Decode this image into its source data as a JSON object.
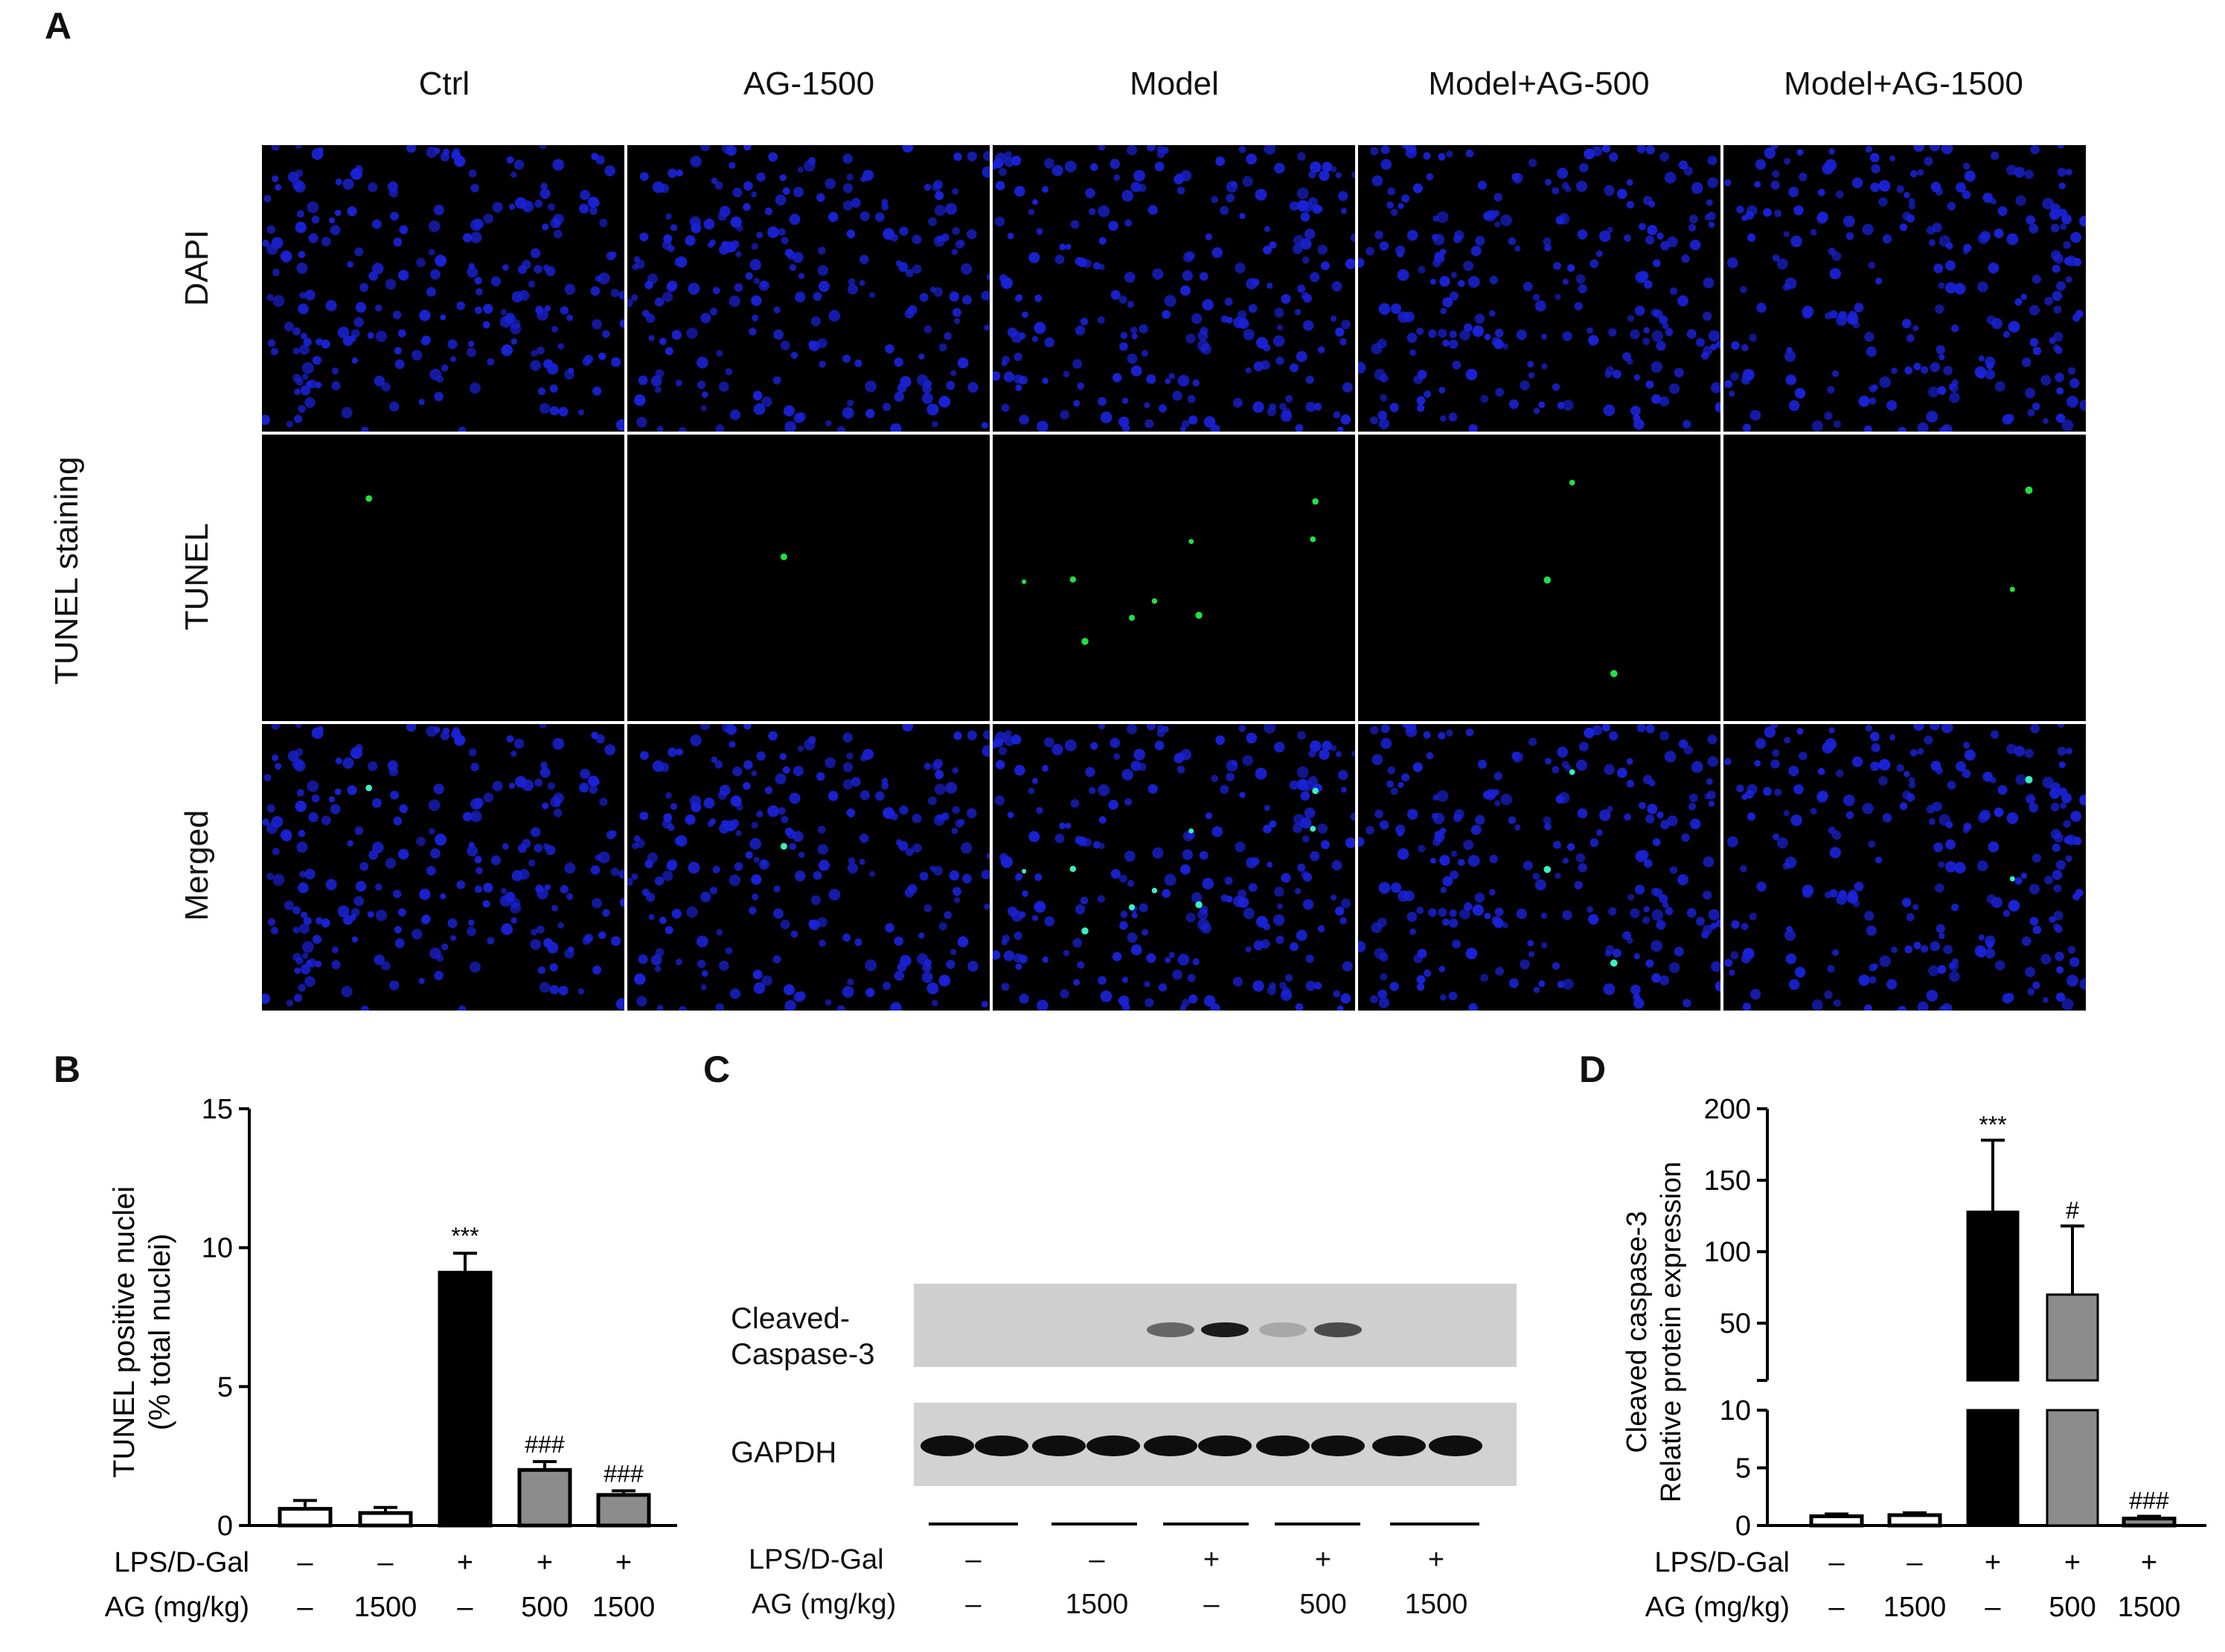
{
  "panels": {
    "a": "A",
    "b": "B",
    "c": "C",
    "d": "D"
  },
  "panel_a": {
    "side_title": "TUNEL staining",
    "columns": [
      "Ctrl",
      "AG-1500",
      "Model",
      "Model+AG-500",
      "Model+AG-1500"
    ],
    "rows": [
      "DAPI",
      "TUNEL",
      "Merged"
    ],
    "colors": {
      "nuclei": "#1a22d8",
      "tunel": "#22e044",
      "merged_tunel": "#3af0c0",
      "background": "#000000"
    },
    "tunel_positive_counts": [
      1,
      1,
      9,
      3,
      2
    ]
  },
  "panel_c": {
    "bands": [
      "Cleaved-\nCaspase-3",
      "GAPDH"
    ],
    "band_label_1": "Cleaved-",
    "band_label_2": "Caspase-3",
    "band_label_3": "GAPDH",
    "condition_rows": [
      "LPS/D-Gal",
      "AG (mg/kg)"
    ],
    "lps": [
      "–",
      "–",
      "+",
      "+",
      "+"
    ],
    "ag": [
      "–",
      "1500",
      "–",
      "500",
      "1500"
    ]
  },
  "chart_data": [
    {
      "type": "bar",
      "panel": "B",
      "ylabel_line1": "TUNEL positive nuclei",
      "ylabel_line2": "(% total nuclei)",
      "categories": [
        "Ctrl",
        "AG-1500",
        "Model",
        "Model+AG-500",
        "Model+AG-1500"
      ],
      "values": [
        0.6,
        0.45,
        9.1,
        2.0,
        1.1
      ],
      "errors": [
        0.3,
        0.2,
        0.7,
        0.3,
        0.15
      ],
      "colors": [
        "#ffffff",
        "#ffffff",
        "#000000",
        "#8c8c8c",
        "#8c8c8c"
      ],
      "annotations": [
        "",
        "",
        "***",
        "###",
        "###"
      ],
      "ylim": [
        0,
        15
      ],
      "yticks": [
        0,
        5,
        10,
        15
      ],
      "condition_rows": [
        "LPS/D-Gal",
        "AG (mg/kg)"
      ],
      "lps": [
        "–",
        "–",
        "+",
        "+",
        "+"
      ],
      "ag": [
        "–",
        "1500",
        "–",
        "500",
        "1500"
      ]
    },
    {
      "type": "bar",
      "panel": "D",
      "ylabel_line1": "Cleaved caspase-3",
      "ylabel_line2": "Relative protein expression",
      "categories": [
        "Ctrl",
        "AG-1500",
        "Model",
        "Model+AG-500",
        "Model+AG-1500"
      ],
      "values": [
        0.8,
        0.9,
        128,
        70,
        0.6
      ],
      "errors": [
        0.2,
        0.2,
        50,
        48,
        0.2
      ],
      "colors": [
        "#ffffff",
        "#ffffff",
        "#000000",
        "#8c8c8c",
        "#8c8c8c"
      ],
      "annotations": [
        "",
        "",
        "***",
        "#",
        "###"
      ],
      "broken_axis": true,
      "lower_range": [
        0,
        10
      ],
      "upper_range": [
        10,
        200
      ],
      "yticks_lower": [
        0,
        5,
        10
      ],
      "yticks_upper": [
        50,
        100,
        150,
        200
      ],
      "condition_rows": [
        "LPS/D-Gal",
        "AG (mg/kg)"
      ],
      "lps": [
        "–",
        "–",
        "+",
        "+",
        "+"
      ],
      "ag": [
        "–",
        "1500",
        "–",
        "500",
        "1500"
      ]
    }
  ]
}
